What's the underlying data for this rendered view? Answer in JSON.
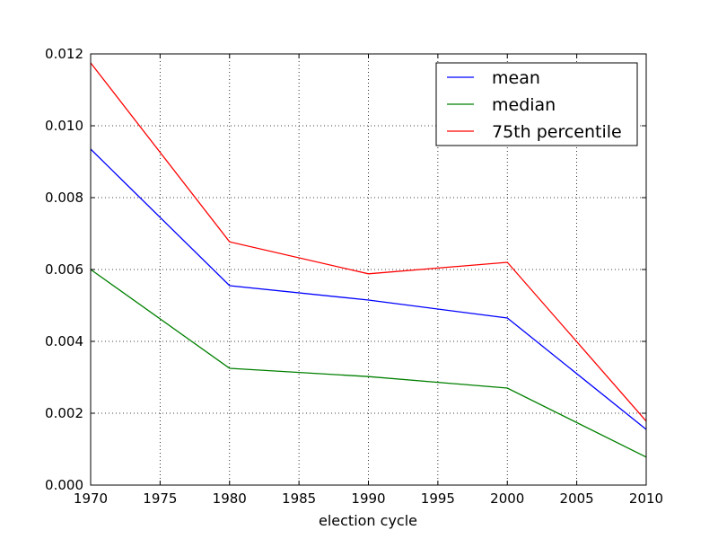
{
  "chart_data": {
    "type": "line",
    "title": "",
    "xlabel": "election cycle",
    "ylabel": "",
    "xlim": [
      1970,
      2010
    ],
    "ylim": [
      0,
      0.012
    ],
    "x_ticks": [
      1970,
      1975,
      1980,
      1985,
      1990,
      1995,
      2000,
      2005,
      2010
    ],
    "y_ticks": [
      0,
      0.002,
      0.004,
      0.006,
      0.008,
      0.01,
      0.012
    ],
    "x_tick_labels": [
      "1970",
      "1975",
      "1980",
      "1985",
      "1990",
      "1995",
      "2000",
      "2005",
      "2010"
    ],
    "y_tick_labels": [
      "0.000",
      "0.002",
      "0.004",
      "0.006",
      "0.008",
      "0.010",
      "0.012"
    ],
    "grid": true,
    "legend_position": "top-right",
    "x": [
      1970,
      1980,
      1990,
      2000,
      2010
    ],
    "series": [
      {
        "name": "mean",
        "color": "#0000ff",
        "values": [
          0.00935,
          0.00555,
          0.00515,
          0.00465,
          0.00155
        ]
      },
      {
        "name": "median",
        "color": "#008000",
        "values": [
          0.006,
          0.00325,
          0.00302,
          0.0027,
          0.00078
        ]
      },
      {
        "name": "75th percentile",
        "color": "#ff0000",
        "values": [
          0.01175,
          0.00677,
          0.00588,
          0.0062,
          0.00178
        ]
      }
    ]
  }
}
